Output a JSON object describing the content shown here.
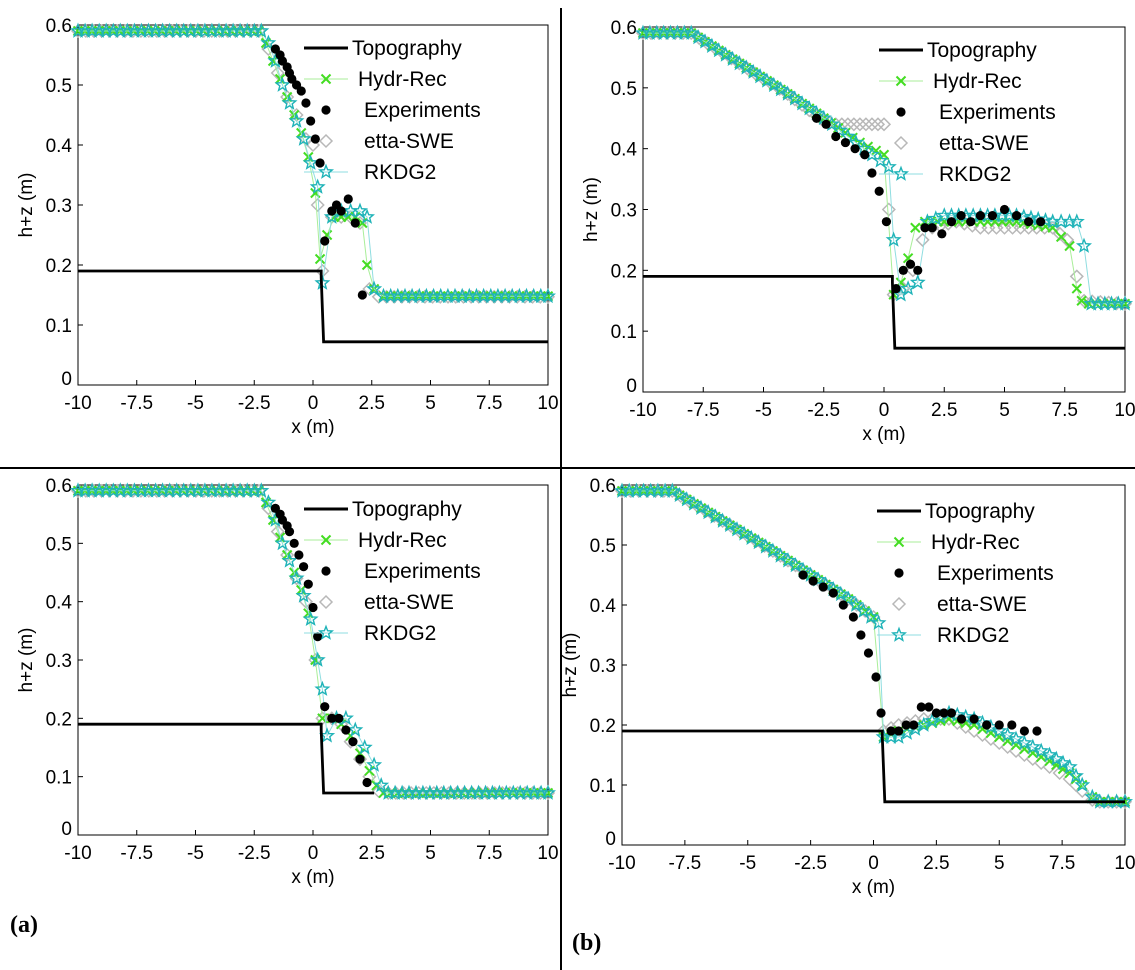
{
  "figure": {
    "panel_labels": [
      "(a)",
      "(b)"
    ]
  },
  "colors": {
    "topography": "#000000",
    "hydr_rec": "#44dd22",
    "experiments": "#000000",
    "etta_swe": "#b8b8b8",
    "rkdg2": "#1fb3b8",
    "rkdg2_line": "#8fdde0",
    "hydr_rec_line": "#a9ee99"
  },
  "chart_data": [
    {
      "type": "line",
      "xlabel": "x (m)",
      "ylabel": "h+z (m)",
      "xlim": [
        -10,
        10
      ],
      "ylim": [
        0,
        0.6
      ],
      "xticks": [
        -10,
        -7.5,
        -5,
        -2.5,
        0,
        2.5,
        5,
        7.5,
        10
      ],
      "xtick_labels": [
        "-10",
        "-7.5",
        "-5",
        "-2.5",
        "0",
        "2.5",
        "5",
        "7.5",
        "10"
      ],
      "yticks": [
        0,
        0.1,
        0.2,
        0.3,
        0.4,
        0.5,
        0.6
      ],
      "ytick_labels": [
        "0",
        "0.1",
        "0.2",
        "0.3",
        "0.4",
        "0.5",
        "0.6"
      ],
      "legend_position": "top-right",
      "series": [
        {
          "name": "Topography",
          "style": "line",
          "x": [
            -10,
            0.35,
            0.35,
            0.45,
            10
          ],
          "y": [
            0.19,
            0.19,
            0.18,
            0.072,
            0.072
          ]
        },
        {
          "name": "Hydr-Rec",
          "style": "x-marker",
          "x": [
            -10,
            -2.3,
            -2.0,
            -1.7,
            -1.4,
            -1.1,
            -0.8,
            -0.5,
            -0.2,
            0.1,
            0.3,
            0.6,
            0.9,
            1.2,
            1.5,
            1.8,
            2.1,
            2.3,
            2.6,
            3.0,
            10
          ],
          "y": [
            0.59,
            0.59,
            0.57,
            0.54,
            0.51,
            0.48,
            0.45,
            0.42,
            0.38,
            0.32,
            0.21,
            0.25,
            0.28,
            0.28,
            0.28,
            0.28,
            0.27,
            0.2,
            0.16,
            0.148,
            0.148
          ]
        },
        {
          "name": "Experiments",
          "style": "dot",
          "x": [
            -1.6,
            -1.4,
            -1.3,
            -1.1,
            -1.0,
            -0.9,
            -0.7,
            -0.5,
            -0.3,
            -0.1,
            0.1,
            0.3,
            0.5,
            0.8,
            1.0,
            1.2,
            1.5,
            1.8,
            2.1
          ],
          "y": [
            0.56,
            0.55,
            0.54,
            0.53,
            0.52,
            0.51,
            0.5,
            0.49,
            0.47,
            0.44,
            0.41,
            0.37,
            0.24,
            0.29,
            0.3,
            0.29,
            0.31,
            0.27,
            0.15
          ]
        },
        {
          "name": "etta-SWE",
          "style": "diamond",
          "x": [
            -10,
            -2.3,
            -1.9,
            -1.5,
            -1.1,
            -0.7,
            -0.3,
            0.0,
            0.2,
            0.4,
            0.8,
            1.2,
            1.6,
            2.0,
            2.4,
            2.8,
            10
          ],
          "y": [
            0.59,
            0.59,
            0.56,
            0.52,
            0.48,
            0.45,
            0.41,
            0.4,
            0.3,
            0.19,
            0.28,
            0.28,
            0.28,
            0.27,
            0.16,
            0.147,
            0.147
          ]
        },
        {
          "name": "RKDG2",
          "style": "star",
          "x": [
            -10,
            -2.2,
            -1.9,
            -1.6,
            -1.3,
            -1.0,
            -0.7,
            -0.4,
            -0.1,
            0.2,
            0.4,
            0.8,
            1.2,
            1.6,
            2.0,
            2.3,
            2.6,
            3.0,
            10
          ],
          "y": [
            0.59,
            0.59,
            0.57,
            0.54,
            0.5,
            0.47,
            0.44,
            0.41,
            0.37,
            0.33,
            0.17,
            0.28,
            0.29,
            0.29,
            0.29,
            0.28,
            0.16,
            0.148,
            0.148
          ]
        }
      ]
    },
    {
      "type": "line",
      "xlabel": "x (m)",
      "ylabel": "h+z (m)",
      "xlim": [
        -10,
        10
      ],
      "ylim": [
        0,
        0.6
      ],
      "xticks": [
        -10,
        -7.5,
        -5,
        -2.5,
        0,
        2.5,
        5,
        7.5,
        10
      ],
      "xtick_labels": [
        "-10",
        "-7.5",
        "-5",
        "-2.5",
        "0",
        "2.5",
        "5",
        "7.5",
        "10"
      ],
      "yticks": [
        0,
        0.1,
        0.2,
        0.3,
        0.4,
        0.5,
        0.6
      ],
      "ytick_labels": [
        "0",
        "0.1",
        "0.2",
        "0.3",
        "0.4",
        "0.5",
        "0.6"
      ],
      "legend_position": "top-right",
      "series": [
        {
          "name": "Topography",
          "style": "line",
          "x": [
            -10,
            0.35,
            0.35,
            0.45,
            10
          ],
          "y": [
            0.19,
            0.19,
            0.18,
            0.072,
            0.072
          ]
        },
        {
          "name": "Hydr-Rec",
          "style": "x-marker",
          "x": [
            -10,
            -8.0,
            -6.0,
            -4.0,
            -2.5,
            -1.0,
            0.0,
            0.4,
            0.7,
            1.0,
            1.3,
            1.7,
            2.5,
            4.0,
            5.5,
            7.0,
            7.7,
            8.0,
            8.2,
            8.5,
            10
          ],
          "y": [
            0.59,
            0.59,
            0.54,
            0.49,
            0.45,
            0.41,
            0.39,
            0.16,
            0.18,
            0.22,
            0.27,
            0.28,
            0.28,
            0.28,
            0.28,
            0.27,
            0.24,
            0.17,
            0.15,
            0.145,
            0.145
          ]
        },
        {
          "name": "Experiments",
          "style": "dot",
          "x": [
            -2.8,
            -2.4,
            -2.0,
            -1.6,
            -1.2,
            -0.8,
            -0.5,
            -0.2,
            0.1,
            0.5,
            0.8,
            1.1,
            1.4,
            1.7,
            2.0,
            2.4,
            2.8,
            3.2,
            3.6,
            4.0,
            4.5,
            5.0,
            5.5,
            6.0,
            6.5
          ],
          "y": [
            0.45,
            0.44,
            0.42,
            0.41,
            0.4,
            0.39,
            0.36,
            0.33,
            0.28,
            0.17,
            0.2,
            0.21,
            0.2,
            0.27,
            0.27,
            0.26,
            0.28,
            0.29,
            0.28,
            0.29,
            0.29,
            0.3,
            0.29,
            0.28,
            0.28
          ]
        },
        {
          "name": "etta-SWE",
          "style": "diamond",
          "x": [
            -10,
            -8.0,
            -6.0,
            -4.0,
            -2.5,
            -2.0,
            -1.5,
            -1.0,
            -0.5,
            0.0,
            0.2,
            0.4,
            0.8,
            1.2,
            1.6,
            2.0,
            3.0,
            4.0,
            5.0,
            6.0,
            7.0,
            7.6,
            8.0,
            8.3,
            10
          ],
          "y": [
            0.59,
            0.59,
            0.54,
            0.49,
            0.445,
            0.44,
            0.44,
            0.44,
            0.44,
            0.44,
            0.3,
            0.16,
            0.17,
            0.2,
            0.25,
            0.27,
            0.28,
            0.27,
            0.27,
            0.27,
            0.27,
            0.25,
            0.19,
            0.15,
            0.145
          ]
        },
        {
          "name": "RKDG2",
          "style": "star",
          "x": [
            -10,
            -8.0,
            -6.0,
            -4.0,
            -2.5,
            -1.5,
            -0.5,
            0.2,
            0.4,
            0.7,
            1.0,
            1.4,
            1.8,
            2.5,
            4.0,
            5.5,
            7.0,
            7.7,
            8.0,
            8.3,
            8.6,
            10
          ],
          "y": [
            0.59,
            0.59,
            0.54,
            0.49,
            0.45,
            0.42,
            0.39,
            0.37,
            0.25,
            0.16,
            0.17,
            0.18,
            0.28,
            0.29,
            0.29,
            0.29,
            0.28,
            0.28,
            0.28,
            0.24,
            0.145,
            0.145
          ]
        }
      ]
    },
    {
      "type": "line",
      "xlabel": "x (m)",
      "ylabel": "h+z (m)",
      "xlim": [
        -10,
        10
      ],
      "ylim": [
        0,
        0.6
      ],
      "xticks": [
        -10,
        -7.5,
        -5,
        -2.5,
        0,
        2.5,
        5,
        7.5,
        10
      ],
      "xtick_labels": [
        "-10",
        "-7.5",
        "-5",
        "-2.5",
        "0",
        "2.5",
        "5",
        "7.5",
        "10"
      ],
      "yticks": [
        0,
        0.1,
        0.2,
        0.3,
        0.4,
        0.5,
        0.6
      ],
      "ytick_labels": [
        "0",
        "0.1",
        "0.2",
        "0.3",
        "0.4",
        "0.5",
        "0.6"
      ],
      "legend_position": "top-right",
      "series": [
        {
          "name": "Topography",
          "style": "line",
          "x": [
            -10,
            0.35,
            0.35,
            0.45,
            2.5,
            2.6,
            2.6
          ],
          "y": [
            0.19,
            0.19,
            0.18,
            0.072,
            0.072,
            0.072,
            0.072
          ]
        },
        {
          "name": "Hydr-Rec",
          "style": "x-marker",
          "x": [
            -10,
            -2.3,
            -2.0,
            -1.7,
            -1.4,
            -1.1,
            -0.8,
            -0.5,
            -0.2,
            0.1,
            0.4,
            0.8,
            1.2,
            1.6,
            2.0,
            2.4,
            2.7,
            3.0,
            10
          ],
          "y": [
            0.59,
            0.59,
            0.57,
            0.54,
            0.51,
            0.48,
            0.45,
            0.42,
            0.38,
            0.3,
            0.2,
            0.2,
            0.19,
            0.17,
            0.14,
            0.11,
            0.085,
            0.072,
            0.072
          ]
        },
        {
          "name": "Experiments",
          "style": "dot",
          "x": [
            -1.6,
            -1.4,
            -1.3,
            -1.1,
            -1.0,
            -0.8,
            -0.6,
            -0.4,
            -0.2,
            0.0,
            0.2,
            0.5,
            0.8,
            1.1,
            1.4,
            1.7,
            2.0,
            2.3
          ],
          "y": [
            0.56,
            0.55,
            0.54,
            0.53,
            0.52,
            0.5,
            0.48,
            0.46,
            0.43,
            0.39,
            0.34,
            0.22,
            0.2,
            0.2,
            0.18,
            0.16,
            0.13,
            0.09
          ]
        },
        {
          "name": "etta-SWE",
          "style": "diamond",
          "x": [
            -10,
            -2.3,
            -1.9,
            -1.5,
            -1.1,
            -0.7,
            -0.3,
            0.1,
            0.4,
            0.8,
            1.2,
            1.6,
            2.0,
            2.4,
            2.8,
            3.2,
            10
          ],
          "y": [
            0.59,
            0.59,
            0.56,
            0.52,
            0.48,
            0.44,
            0.4,
            0.3,
            0.2,
            0.2,
            0.19,
            0.16,
            0.13,
            0.1,
            0.075,
            0.072,
            0.072
          ]
        },
        {
          "name": "RKDG2",
          "style": "star",
          "x": [
            -10,
            -2.2,
            -1.9,
            -1.6,
            -1.3,
            -1.0,
            -0.7,
            -0.4,
            -0.1,
            0.2,
            0.4,
            0.6,
            1.0,
            1.4,
            1.8,
            2.2,
            2.6,
            2.9,
            3.2,
            10
          ],
          "y": [
            0.59,
            0.59,
            0.57,
            0.54,
            0.5,
            0.47,
            0.44,
            0.41,
            0.37,
            0.3,
            0.25,
            0.17,
            0.2,
            0.2,
            0.18,
            0.15,
            0.12,
            0.085,
            0.072,
            0.072
          ]
        }
      ]
    },
    {
      "type": "line",
      "xlabel": "x (m)",
      "ylabel": "h+z (m)",
      "xlim": [
        -10,
        10
      ],
      "ylim": [
        0,
        0.6
      ],
      "xticks": [
        -10,
        -7.5,
        -5,
        -2.5,
        0,
        2.5,
        5,
        7.5,
        10
      ],
      "xtick_labels": [
        "-10",
        "-7.5",
        "-5",
        "-2.5",
        "0",
        "2.5",
        "5",
        "7.5",
        "10"
      ],
      "yticks": [
        0,
        0.1,
        0.2,
        0.3,
        0.4,
        0.5,
        0.6
      ],
      "ytick_labels": [
        "0",
        "0.1",
        "0.2",
        "0.3",
        "0.4",
        "0.5",
        "0.6"
      ],
      "legend_position": "top-right",
      "series": [
        {
          "name": "Topography",
          "style": "line",
          "x": [
            -10,
            0.35,
            0.35,
            0.45,
            8.6,
            8.9,
            10
          ],
          "y": [
            0.19,
            0.19,
            0.18,
            0.072,
            0.072,
            0.072,
            0.072
          ]
        },
        {
          "name": "Hydr-Rec",
          "style": "x-marker",
          "x": [
            -10,
            -8.0,
            -6.0,
            -4.0,
            -2.5,
            -1.0,
            0.0,
            0.4,
            1.0,
            2.0,
            3.0,
            4.0,
            5.0,
            6.0,
            7.0,
            7.8,
            8.3,
            8.7,
            9.0,
            10
          ],
          "y": [
            0.59,
            0.59,
            0.54,
            0.49,
            0.45,
            0.41,
            0.38,
            0.18,
            0.19,
            0.2,
            0.21,
            0.2,
            0.18,
            0.16,
            0.14,
            0.12,
            0.1,
            0.08,
            0.072,
            0.072
          ]
        },
        {
          "name": "Experiments",
          "style": "dot",
          "x": [
            -2.8,
            -2.4,
            -2.0,
            -1.6,
            -1.2,
            -0.8,
            -0.5,
            -0.2,
            0.1,
            0.3,
            0.7,
            1.0,
            1.3,
            1.6,
            1.9,
            2.2,
            2.5,
            2.8,
            3.1,
            3.5,
            4.0,
            4.5,
            5.0,
            5.5,
            6.0,
            6.5
          ],
          "y": [
            0.45,
            0.44,
            0.43,
            0.42,
            0.4,
            0.38,
            0.35,
            0.32,
            0.28,
            0.22,
            0.19,
            0.19,
            0.2,
            0.2,
            0.23,
            0.23,
            0.22,
            0.22,
            0.22,
            0.21,
            0.21,
            0.2,
            0.2,
            0.2,
            0.19,
            0.19
          ]
        },
        {
          "name": "etta-SWE",
          "style": "diamond",
          "x": [
            -10,
            -8.0,
            -6.0,
            -4.0,
            -2.5,
            -1.0,
            0.0,
            0.4,
            1.0,
            2.0,
            3.0,
            4.0,
            5.0,
            6.0,
            7.0,
            7.8,
            8.3,
            8.7,
            9.0,
            10
          ],
          "y": [
            0.59,
            0.59,
            0.54,
            0.49,
            0.45,
            0.41,
            0.38,
            0.19,
            0.2,
            0.21,
            0.21,
            0.19,
            0.17,
            0.15,
            0.13,
            0.11,
            0.09,
            0.075,
            0.072,
            0.072
          ]
        },
        {
          "name": "RKDG2",
          "style": "star",
          "x": [
            -10,
            -8.0,
            -6.0,
            -4.0,
            -2.5,
            -1.0,
            0.2,
            0.4,
            1.0,
            2.0,
            3.0,
            4.0,
            5.0,
            6.0,
            7.0,
            7.8,
            8.3,
            8.7,
            9.0,
            10
          ],
          "y": [
            0.59,
            0.59,
            0.54,
            0.49,
            0.45,
            0.41,
            0.37,
            0.18,
            0.18,
            0.2,
            0.22,
            0.21,
            0.19,
            0.17,
            0.15,
            0.13,
            0.1,
            0.08,
            0.072,
            0.072
          ]
        }
      ]
    }
  ]
}
